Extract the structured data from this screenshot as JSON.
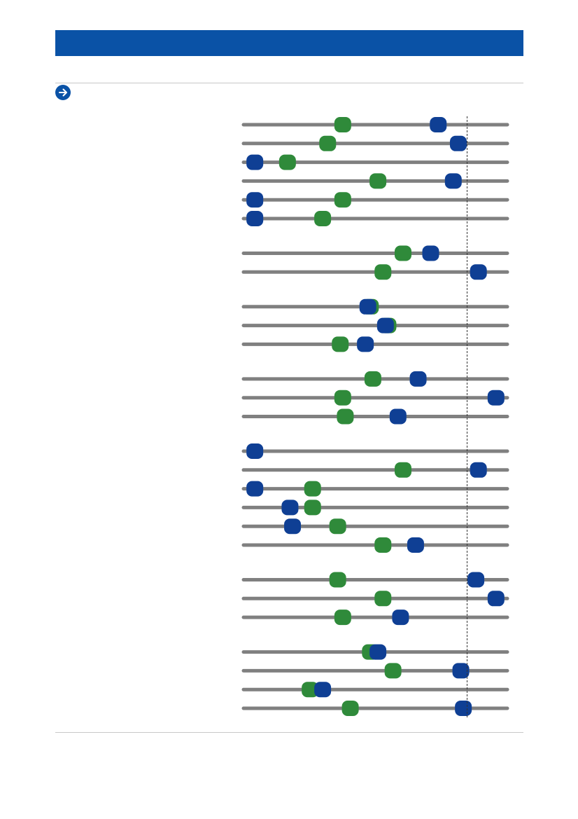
{
  "colors": {
    "header": "#0a52a6",
    "track": "#808080",
    "green": "#2f8a3a",
    "blue": "#0f3f94",
    "reference_line": "#333333"
  },
  "icons": {
    "nav": "arrow-right-circle-icon"
  },
  "chart_data": {
    "type": "dot-comparison",
    "xlim": [
      0,
      100
    ],
    "reference_x": 86.5,
    "grid": false,
    "legend": "none",
    "groups": [
      {
        "rows": [
          {
            "green": 37,
            "blue": 75
          },
          {
            "green": 31,
            "blue": 83
          },
          {
            "green": 15,
            "blue": 2
          },
          {
            "green": 51,
            "blue": 81
          },
          {
            "green": 37,
            "blue": 2
          },
          {
            "green": 29,
            "blue": 2
          }
        ]
      },
      {
        "rows": [
          {
            "green": 61,
            "blue": 72
          },
          {
            "green": 53,
            "blue": 91
          }
        ]
      },
      {
        "rows": [
          {
            "green": 48,
            "blue": 47
          },
          {
            "green": 55,
            "blue": 54
          },
          {
            "green": 36,
            "blue": 46
          }
        ]
      },
      {
        "rows": [
          {
            "green": 49,
            "blue": 67
          },
          {
            "green": 37,
            "blue": 98
          },
          {
            "green": 38,
            "blue": 59
          }
        ]
      },
      {
        "rows": [
          {
            "green": null,
            "blue": 2
          },
          {
            "green": 61,
            "blue": 91
          },
          {
            "green": 25,
            "blue": 2
          },
          {
            "green": 25,
            "blue": 16
          },
          {
            "green": 35,
            "blue": 17
          },
          {
            "green": 53,
            "blue": 66
          }
        ]
      },
      {
        "rows": [
          {
            "green": 35,
            "blue": 90
          },
          {
            "green": 53,
            "blue": 98
          },
          {
            "green": 37,
            "blue": 60
          }
        ]
      },
      {
        "rows": [
          {
            "green": 48,
            "blue": 51
          },
          {
            "green": 57,
            "blue": 84
          },
          {
            "green": 24,
            "blue": 29
          },
          {
            "green": 40,
            "blue": 85
          }
        ]
      }
    ]
  }
}
